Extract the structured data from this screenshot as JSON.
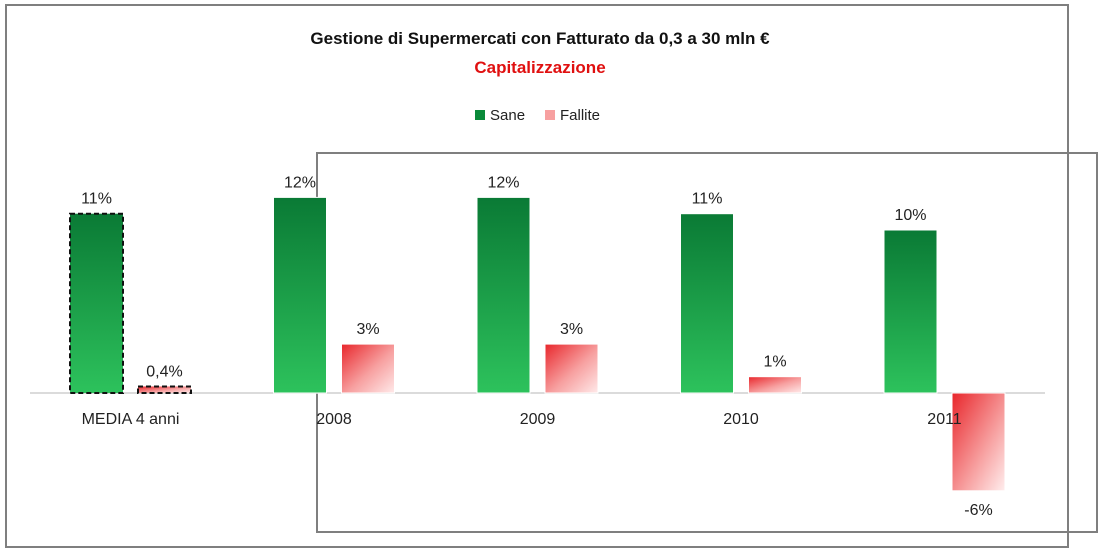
{
  "chart_data": {
    "type": "bar",
    "title": "Gestione di Supermercati con Fatturato da 0,3 a 30 mln €",
    "subtitle": "Capitalizzazione",
    "categories": [
      "MEDIA 4 anni",
      "2008",
      "2009",
      "2010",
      "2011"
    ],
    "series": [
      {
        "name": "Sane",
        "values": [
          11,
          12,
          12,
          11,
          10
        ],
        "labels": [
          "11%",
          "12%",
          "12%",
          "11%",
          "10%"
        ],
        "color": "#0a8a3a"
      },
      {
        "name": "Fallite",
        "values": [
          0.4,
          3,
          3,
          1,
          -6
        ],
        "labels": [
          "0,4%",
          "3%",
          "3%",
          "1%",
          "-6%"
        ],
        "color": "#f03c3c"
      }
    ],
    "legend_position": "top-center",
    "ylim": [
      -7,
      13
    ],
    "grid": false,
    "highlighted_category": "MEDIA 4 anni"
  },
  "colors": {
    "sane_dark": "#0a7a35",
    "sane_light": "#2dc25c",
    "fallite_dark": "#e8262b",
    "fallite_light": "#ffeaea",
    "negative_label": "#e01010",
    "subtitle": "#e01010"
  }
}
